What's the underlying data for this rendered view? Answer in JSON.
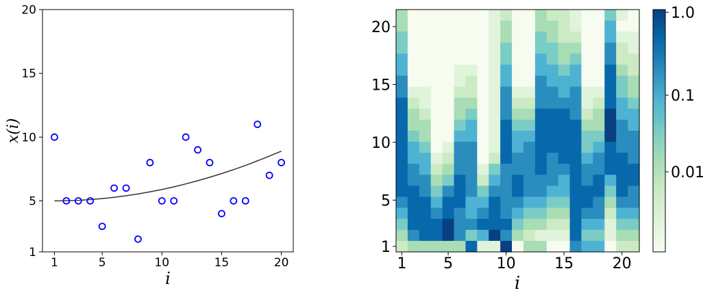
{
  "chart_data": [
    {
      "type": "scatter",
      "xlabel": "i",
      "ylabel": "x(i)",
      "xlim": [
        0,
        21
      ],
      "ylim": [
        1,
        20
      ],
      "xticks": [
        "1",
        "5",
        "10",
        "15",
        "20"
      ],
      "yticks": [
        "1",
        "5",
        "10",
        "15",
        "20"
      ],
      "grid": false,
      "marker_color": "#0000ff",
      "curve_color": "#333333",
      "points": {
        "x": [
          1,
          2,
          3,
          4,
          5,
          6,
          7,
          8,
          9,
          10,
          11,
          12,
          13,
          14,
          15,
          16,
          17,
          18,
          19,
          20
        ],
        "y": [
          10,
          5,
          5,
          5,
          3,
          6,
          6,
          2,
          8,
          5,
          5,
          10,
          9,
          8,
          4,
          5,
          5,
          11,
          7,
          8
        ]
      },
      "curve": {
        "x": [
          1,
          2,
          3,
          4,
          5,
          6,
          7,
          8,
          9,
          10,
          11,
          12,
          13,
          14,
          15,
          16,
          17,
          18,
          19,
          20
        ],
        "y": [
          5.0,
          5.01,
          5.04,
          5.1,
          5.18,
          5.28,
          5.4,
          5.54,
          5.71,
          5.89,
          6.1,
          6.33,
          6.58,
          6.85,
          7.14,
          7.45,
          7.78,
          8.14,
          8.51,
          8.9
        ]
      }
    },
    {
      "type": "heatmap",
      "xlabel": "i",
      "ylabel": "",
      "xticks": [
        "1",
        "5",
        "10",
        "15",
        "20"
      ],
      "yticks": [
        "1",
        "5",
        "10",
        "15",
        "20"
      ],
      "colorbar": {
        "scale": "log",
        "ticks": [
          "1.0",
          "0.1",
          "0.01"
        ],
        "colors": [
          "#f7fcf0",
          "#e0f3db",
          "#ccebc5",
          "#a8ddb5",
          "#7bccc4",
          "#4eb3d3",
          "#2b8cbe",
          "#0868ac",
          "#084081"
        ]
      },
      "rows_top_to_bottom": [
        [
          3,
          0,
          0,
          0,
          0,
          0,
          0,
          0,
          1,
          2,
          0,
          0,
          3,
          2,
          2,
          1,
          0,
          0,
          4,
          1,
          0
        ],
        [
          3,
          0,
          0,
          0,
          0,
          0,
          0,
          0,
          1,
          3,
          0,
          0,
          3,
          3,
          2,
          1,
          0,
          0,
          5,
          0,
          0
        ],
        [
          4,
          0,
          0,
          0,
          0,
          0,
          0,
          0,
          1,
          3,
          0,
          0,
          4,
          3,
          2,
          2,
          0,
          0,
          5,
          1,
          1
        ],
        [
          4,
          0,
          0,
          0,
          0,
          0,
          0,
          0,
          1,
          4,
          0,
          0,
          4,
          4,
          3,
          3,
          0,
          0,
          6,
          2,
          1
        ],
        [
          5,
          0,
          0,
          0,
          0,
          0,
          0,
          0,
          1,
          4,
          0,
          0,
          5,
          4,
          3,
          4,
          0,
          0,
          6,
          2,
          2
        ],
        [
          5,
          0,
          0,
          0,
          0,
          1,
          1,
          0,
          1,
          5,
          0,
          0,
          5,
          5,
          4,
          5,
          0,
          0,
          7,
          3,
          2
        ],
        [
          6,
          0,
          0,
          0,
          0,
          1,
          2,
          0,
          1,
          5,
          0,
          0,
          6,
          5,
          5,
          5,
          0,
          0,
          7,
          4,
          3
        ],
        [
          6,
          1,
          1,
          0,
          0,
          2,
          2,
          0,
          1,
          6,
          1,
          1,
          6,
          6,
          5,
          6,
          1,
          1,
          7,
          4,
          3
        ],
        [
          7,
          2,
          1,
          0,
          0,
          3,
          3,
          0,
          1,
          6,
          2,
          2,
          6,
          6,
          6,
          6,
          1,
          2,
          7,
          5,
          4
        ],
        [
          7,
          3,
          2,
          0,
          0,
          3,
          4,
          0,
          1,
          6,
          3,
          3,
          7,
          7,
          7,
          6,
          2,
          3,
          8,
          5,
          5
        ],
        [
          7,
          3,
          3,
          0,
          0,
          4,
          5,
          0,
          1,
          7,
          4,
          4,
          7,
          7,
          7,
          7,
          3,
          3,
          8,
          6,
          5
        ],
        [
          7,
          4,
          3,
          0,
          0,
          5,
          5,
          0,
          1,
          7,
          5,
          5,
          7,
          7,
          7,
          7,
          4,
          4,
          8,
          6,
          6
        ],
        [
          7,
          5,
          4,
          0,
          1,
          6,
          6,
          0,
          1,
          7,
          5,
          6,
          7,
          7,
          7,
          7,
          4,
          5,
          7,
          6,
          6
        ],
        [
          7,
          5,
          5,
          1,
          2,
          6,
          6,
          0,
          2,
          7,
          6,
          6,
          7,
          6,
          7,
          7,
          5,
          6,
          7,
          7,
          6
        ],
        [
          7,
          6,
          5,
          2,
          3,
          6,
          6,
          1,
          4,
          6,
          6,
          6,
          7,
          6,
          6,
          7,
          6,
          6,
          7,
          7,
          7
        ],
        [
          7,
          6,
          6,
          3,
          4,
          7,
          6,
          2,
          5,
          6,
          7,
          6,
          6,
          6,
          5,
          7,
          6,
          7,
          5,
          7,
          7
        ],
        [
          7,
          7,
          6,
          4,
          6,
          7,
          6,
          4,
          6,
          6,
          7,
          6,
          6,
          5,
          5,
          7,
          7,
          7,
          4,
          7,
          6
        ],
        [
          6,
          7,
          7,
          5,
          7,
          7,
          5,
          5,
          7,
          6,
          6,
          5,
          5,
          4,
          4,
          7,
          7,
          6,
          3,
          6,
          6
        ],
        [
          5,
          7,
          7,
          6,
          7,
          6,
          5,
          6,
          7,
          6,
          5,
          4,
          4,
          3,
          3,
          7,
          6,
          6,
          2,
          5,
          5
        ],
        [
          4,
          7,
          7,
          7,
          8,
          6,
          6,
          7,
          7,
          7,
          4,
          3,
          3,
          2,
          2,
          7,
          5,
          5,
          1,
          4,
          4
        ],
        [
          3,
          6,
          7,
          7,
          8,
          6,
          4,
          5,
          8,
          6,
          3,
          2,
          1,
          1,
          1,
          7,
          4,
          4,
          1,
          3,
          3
        ],
        [
          2,
          3,
          3,
          3,
          3,
          3,
          7,
          1,
          1,
          8,
          0,
          3,
          3,
          0,
          0,
          6,
          5,
          5,
          0,
          2,
          2
        ]
      ]
    }
  ]
}
